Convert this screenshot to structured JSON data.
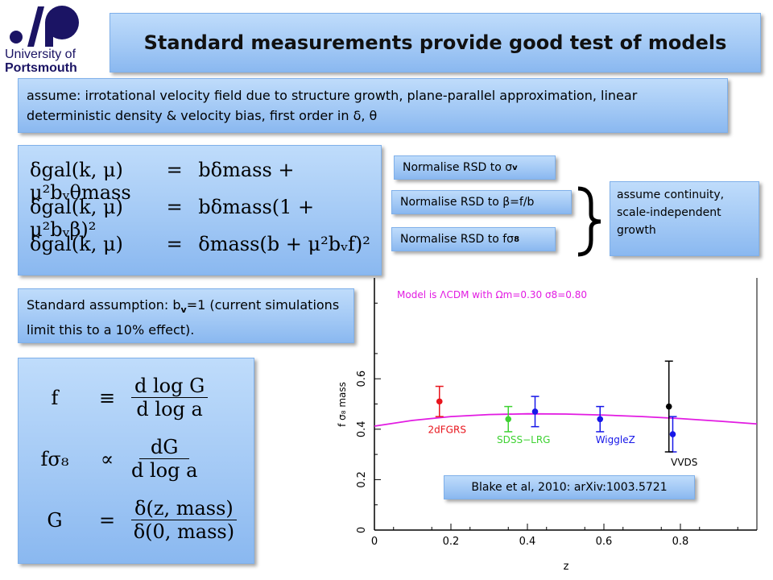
{
  "logo": {
    "line1": "University of",
    "line2": "Portsmouth"
  },
  "title": "Standard measurements provide good test of models",
  "assumption_text": "assume: irrotational velocity field due to structure growth, plane-parallel approximation, linear deterministic density & velocity bias, first order in δ, θ",
  "standard_assumption": {
    "prefix": "Standard assumption: b",
    "sub": "v",
    "suffix": "=1  (current simulations limit this to a 10% effect)."
  },
  "normalise": [
    {
      "prefix": "Normalise RSD to σ",
      "sub": "v"
    },
    {
      "prefix": "Normalise RSD to β=f/b",
      "sub": ""
    },
    {
      "prefix": "Normalise RSD to fσ",
      "sub": "8"
    }
  ],
  "continuity_text": "assume continuity, scale-independent growth",
  "citation": "Blake et al, 2010: arXiv:1003.5721",
  "equations_top": [
    {
      "lhs": "δgal(k, μ)",
      "op": "=",
      "rhs": "bδmass + μ²bᵥθmass"
    },
    {
      "lhs": "δgal(k, μ)",
      "op": "=",
      "rhs": "bδmass(1 + μ²bᵥβ)²"
    },
    {
      "lhs": "δgal(k, μ)",
      "op": "=",
      "rhs": "δmass(b + μ²bᵥf)²"
    }
  ],
  "equations_growth": [
    {
      "lhs": "f",
      "op": "≡",
      "num": "d log G",
      "den": "d log a"
    },
    {
      "lhs": "fσ₈",
      "op": "∝",
      "num": "dG",
      "den": "d log a"
    },
    {
      "lhs": "G",
      "op": "=",
      "num": "δ(z, mass)",
      "den": "δ(0, mass)"
    }
  ],
  "colors": {
    "box_fill": "#a3c9f5",
    "logo": "#1b1464",
    "model": "#e21be2",
    "twodf": "#e8141c",
    "sdss": "#3ed232",
    "wigglez": "#1717e8",
    "vvds": "#000000"
  },
  "chart_data": {
    "type": "scatter",
    "xlabel": "z",
    "ylabel": "f σ₈ mass",
    "xlim": [
      0,
      1.0
    ],
    "ylim": [
      0,
      1.0
    ],
    "x_ticks": [
      "0",
      "0.2",
      "0.4",
      "0.6",
      "0.8"
    ],
    "x_tick_values": [
      0,
      0.2,
      0.4,
      0.6,
      0.8
    ],
    "y_ticks": [
      "0",
      "0.2",
      "0.4",
      "0.6"
    ],
    "y_tick_values": [
      0,
      0.2,
      0.4,
      0.6
    ],
    "model": {
      "label": "Model is ΛCDM with Ωm=0.30 σ8=0.80",
      "z": [
        0.0,
        0.1,
        0.2,
        0.3,
        0.4,
        0.5,
        0.6,
        0.7,
        0.8,
        0.9,
        1.0
      ],
      "values": [
        0.412,
        0.435,
        0.45,
        0.458,
        0.461,
        0.46,
        0.456,
        0.45,
        0.442,
        0.432,
        0.421
      ]
    },
    "series": [
      {
        "name": "2dFGRS",
        "color": "#e8141c",
        "points": [
          {
            "x": 0.17,
            "y": 0.51,
            "err_lo": 0.06,
            "err_hi": 0.06
          }
        ]
      },
      {
        "name": "SDSS−LRG",
        "color": "#3ed232",
        "points": [
          {
            "x": 0.35,
            "y": 0.44,
            "err_lo": 0.05,
            "err_hi": 0.05
          }
        ]
      },
      {
        "name": "WiggleZ",
        "color": "#1717e8",
        "points": [
          {
            "x": 0.42,
            "y": 0.47,
            "err_lo": 0.06,
            "err_hi": 0.06
          },
          {
            "x": 0.59,
            "y": 0.44,
            "err_lo": 0.05,
            "err_hi": 0.05
          },
          {
            "x": 0.78,
            "y": 0.38,
            "err_lo": 0.07,
            "err_hi": 0.07
          }
        ]
      },
      {
        "name": "VVDS",
        "color": "#000000",
        "points": [
          {
            "x": 0.77,
            "y": 0.49,
            "err_lo": 0.18,
            "err_hi": 0.18
          }
        ]
      }
    ]
  }
}
